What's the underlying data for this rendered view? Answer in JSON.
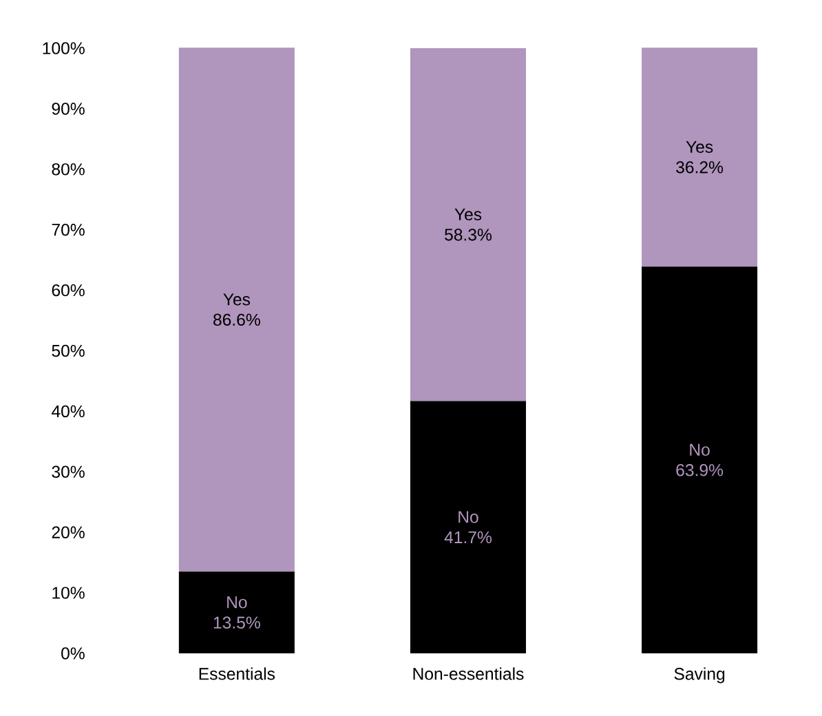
{
  "chart_data": {
    "type": "bar",
    "stacked": true,
    "categories": [
      "Essentials",
      "Non-essentials",
      "Saving"
    ],
    "series": [
      {
        "name": "No",
        "color": "#000000",
        "values": [
          13.5,
          41.7,
          63.9
        ],
        "value_labels": [
          "13.5%",
          "41.7%",
          "63.9%"
        ]
      },
      {
        "name": "Yes",
        "color": "#b095bd",
        "values": [
          86.6,
          58.3,
          36.2
        ],
        "value_labels": [
          "86.6%",
          "58.3%",
          "36.2%"
        ]
      }
    ],
    "ylim": [
      0,
      100.1
    ],
    "yticks": [
      {
        "value": 0,
        "label": "0%"
      },
      {
        "value": 10,
        "label": "10%"
      },
      {
        "value": 20,
        "label": "20%"
      },
      {
        "value": 30,
        "label": "30%"
      },
      {
        "value": 40,
        "label": "40%"
      },
      {
        "value": 50,
        "label": "50%"
      },
      {
        "value": 60,
        "label": "60%"
      },
      {
        "value": 70,
        "label": "70%"
      },
      {
        "value": 80,
        "label": "80%"
      },
      {
        "value": 90,
        "label": "90%"
      },
      {
        "value": 100,
        "label": "100%"
      }
    ],
    "grid": false,
    "legend": false
  }
}
